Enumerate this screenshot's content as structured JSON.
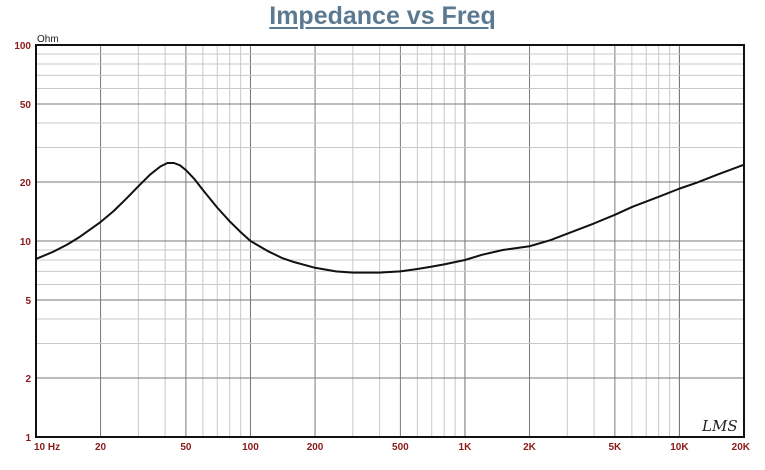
{
  "chart_data": {
    "type": "line",
    "title": "Impedance vs Freq",
    "ylabel": "Ohm",
    "xlabel": "",
    "x_scale": "log",
    "y_scale": "log",
    "xlim": [
      10,
      20000
    ],
    "ylim": [
      1,
      100
    ],
    "grid": true,
    "x_ticks": [
      {
        "value": 10,
        "label": "10  Hz"
      },
      {
        "value": 20,
        "label": "20"
      },
      {
        "value": 50,
        "label": "50"
      },
      {
        "value": 100,
        "label": "100"
      },
      {
        "value": 200,
        "label": "200"
      },
      {
        "value": 500,
        "label": "500"
      },
      {
        "value": 1000,
        "label": "1K"
      },
      {
        "value": 2000,
        "label": "2K"
      },
      {
        "value": 5000,
        "label": "5K"
      },
      {
        "value": 10000,
        "label": "10K"
      },
      {
        "value": 20000,
        "label": "20K"
      }
    ],
    "y_ticks": [
      {
        "value": 1,
        "label": "1"
      },
      {
        "value": 2,
        "label": "2"
      },
      {
        "value": 5,
        "label": "5"
      },
      {
        "value": 10,
        "label": "10"
      },
      {
        "value": 20,
        "label": "20"
      },
      {
        "value": 50,
        "label": "50"
      },
      {
        "value": 100,
        "label": "100"
      }
    ],
    "series": [
      {
        "color": "#111111",
        "points": [
          [
            10,
            8.1
          ],
          [
            12,
            8.8
          ],
          [
            14,
            9.6
          ],
          [
            16,
            10.5
          ],
          [
            18,
            11.5
          ],
          [
            20,
            12.5
          ],
          [
            23,
            14.2
          ],
          [
            26,
            16.2
          ],
          [
            30,
            19.0
          ],
          [
            34,
            21.8
          ],
          [
            38,
            24.0
          ],
          [
            41,
            25.0
          ],
          [
            44,
            25.0
          ],
          [
            47,
            24.3
          ],
          [
            50,
            23.0
          ],
          [
            55,
            20.6
          ],
          [
            60,
            18.2
          ],
          [
            70,
            14.8
          ],
          [
            80,
            12.6
          ],
          [
            90,
            11.1
          ],
          [
            100,
            10.0
          ],
          [
            120,
            8.9
          ],
          [
            140,
            8.2
          ],
          [
            160,
            7.8
          ],
          [
            200,
            7.3
          ],
          [
            250,
            7.0
          ],
          [
            300,
            6.9
          ],
          [
            350,
            6.9
          ],
          [
            400,
            6.9
          ],
          [
            500,
            7.0
          ],
          [
            600,
            7.2
          ],
          [
            700,
            7.4
          ],
          [
            800,
            7.6
          ],
          [
            1000,
            8.0
          ],
          [
            1200,
            8.5
          ],
          [
            1500,
            9.0
          ],
          [
            2000,
            9.4
          ],
          [
            2500,
            10.1
          ],
          [
            3000,
            10.9
          ],
          [
            4000,
            12.3
          ],
          [
            5000,
            13.6
          ],
          [
            6000,
            14.9
          ],
          [
            8000,
            16.8
          ],
          [
            10000,
            18.5
          ],
          [
            12000,
            19.8
          ],
          [
            15000,
            21.8
          ],
          [
            20000,
            24.5
          ]
        ]
      }
    ],
    "watermark": "LMS"
  }
}
